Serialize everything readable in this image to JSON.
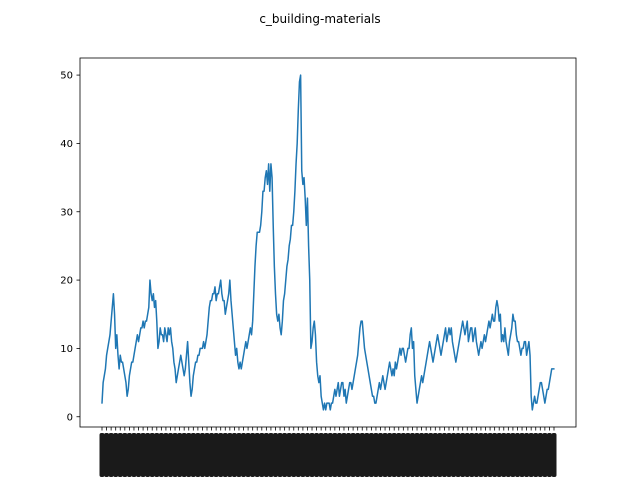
{
  "chart_data": {
    "type": "line",
    "title": "c_building-materials",
    "xlabel": "",
    "ylabel": "",
    "ylim": [
      -1.5,
      52.5
    ],
    "yticks": [
      0,
      10,
      20,
      30,
      40,
      50
    ],
    "grid": false,
    "legend": "none",
    "colors": {
      "line": "#1f77b4",
      "axes": "#000000",
      "background": "#ffffff"
    },
    "x_tick_labels_legible": false,
    "series": [
      {
        "values": [
          2,
          5,
          6,
          7,
          9,
          10,
          11,
          12,
          14,
          16,
          18,
          15,
          10,
          12,
          9,
          7,
          9,
          8,
          8,
          7,
          6,
          5,
          3,
          4,
          6,
          7,
          8,
          8,
          9,
          10,
          11,
          12,
          11,
          12,
          13,
          13,
          14,
          13,
          14,
          14,
          15,
          16,
          20,
          18,
          17,
          18,
          16,
          17,
          14,
          10,
          11,
          13,
          12,
          12,
          11,
          13,
          12,
          11,
          13,
          12,
          13,
          11,
          10,
          8,
          7,
          5,
          6,
          7,
          8,
          9,
          8,
          7,
          6,
          7,
          9,
          11,
          8,
          5,
          3,
          4,
          6,
          7,
          8,
          8,
          9,
          9,
          10,
          10,
          10,
          11,
          10,
          11,
          12,
          14,
          16,
          17,
          17,
          18,
          18,
          19,
          17,
          18,
          18,
          19,
          20,
          18,
          17,
          17,
          15,
          16,
          17,
          18,
          20,
          17,
          15,
          13,
          11,
          9,
          10,
          8,
          7,
          8,
          7,
          8,
          9,
          10,
          11,
          10,
          11,
          12,
          13,
          12,
          14,
          18,
          22,
          25,
          27,
          27,
          27,
          28,
          30,
          33,
          33,
          35,
          36,
          34,
          37,
          33,
          37,
          35,
          28,
          22,
          18,
          15,
          14,
          15,
          13,
          12,
          14,
          17,
          18,
          20,
          22,
          23,
          25,
          26,
          28,
          28,
          30,
          33,
          37,
          40,
          45,
          49,
          50,
          36,
          34,
          35,
          32,
          28,
          32,
          25,
          20,
          10,
          11,
          13,
          14,
          12,
          8,
          6,
          5,
          6,
          3,
          2,
          1,
          2,
          1,
          2,
          2,
          2,
          1,
          2,
          2,
          3,
          4,
          3,
          4,
          5,
          3,
          4,
          5,
          5,
          3,
          4,
          2,
          3,
          4,
          5,
          5,
          4,
          5,
          6,
          7,
          8,
          9,
          11,
          13,
          14,
          14,
          12,
          10,
          9,
          8,
          7,
          6,
          5,
          4,
          3,
          3,
          2,
          2,
          3,
          4,
          5,
          4,
          5,
          6,
          5,
          4,
          5,
          6,
          7,
          8,
          7,
          6,
          7,
          6,
          8,
          7,
          8,
          9,
          10,
          9,
          10,
          10,
          9,
          8,
          9,
          10,
          10,
          12,
          13,
          10,
          11,
          6,
          4,
          2,
          3,
          4,
          5,
          6,
          5,
          6,
          7,
          8,
          9,
          10,
          11,
          10,
          9,
          8,
          9,
          10,
          11,
          12,
          11,
          10,
          9,
          10,
          11,
          12,
          13,
          11,
          12,
          13,
          12,
          13,
          11,
          10,
          9,
          8,
          9,
          10,
          11,
          12,
          13,
          14,
          13,
          12,
          13,
          14,
          11,
          12,
          13,
          13,
          11,
          12,
          13,
          11,
          10,
          9,
          10,
          11,
          10,
          11,
          12,
          11,
          12,
          13,
          14,
          13,
          14,
          15,
          14,
          14,
          16,
          17,
          16,
          14,
          15,
          11,
          12,
          11,
          13,
          11,
          10,
          9,
          11,
          12,
          13,
          15,
          14,
          14,
          12,
          11,
          11,
          10,
          9,
          10,
          10,
          11,
          11,
          9,
          10,
          11,
          9,
          3,
          1,
          2,
          3,
          2,
          2,
          3,
          4,
          5,
          5,
          4,
          3,
          2,
          3,
          4,
          4,
          5,
          6,
          7,
          7,
          7
        ]
      }
    ]
  }
}
